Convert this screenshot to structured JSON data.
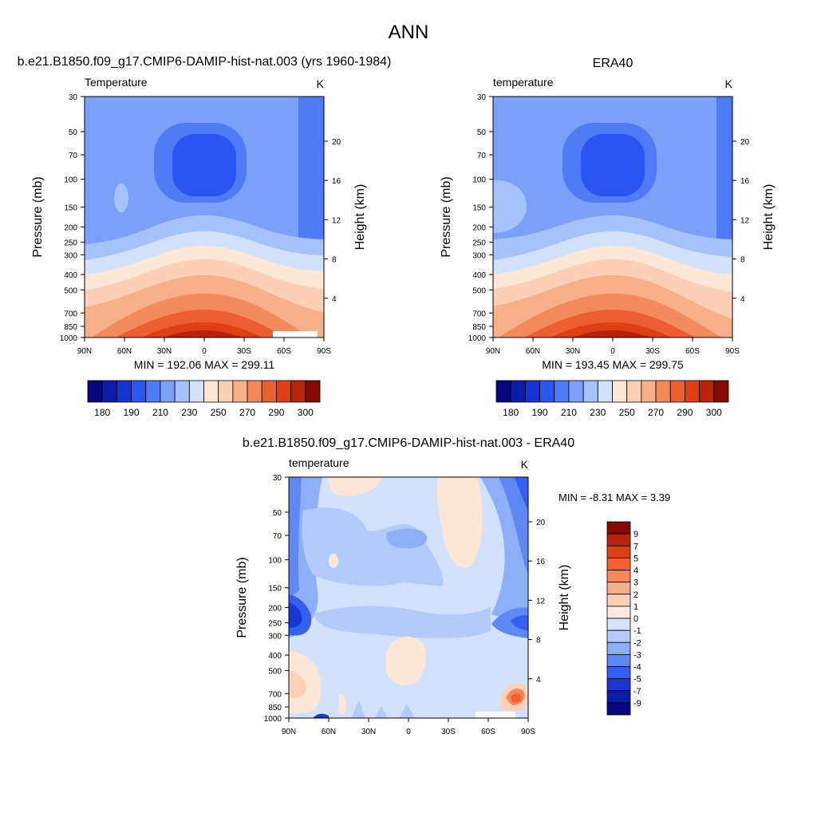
{
  "page": {
    "title": "ANN"
  },
  "chart_data": [
    {
      "type": "heatmap",
      "title": "b.e21.B1850.f09_g17.CMIP6-DAMIP-hist-nat.003 (yrs 1960-1984)",
      "subtitle": "Temperature",
      "units": "K",
      "xlabel": "",
      "ylabel": "Pressure (mb)",
      "ylabel_right": "Height (km)",
      "x_ticks": [
        "90N",
        "60N",
        "30N",
        "0",
        "30S",
        "60S",
        "90S"
      ],
      "y_ticks": [
        30,
        50,
        70,
        100,
        150,
        200,
        250,
        300,
        400,
        500,
        700,
        850,
        1000
      ],
      "y_right_ticks": [
        4,
        8,
        12,
        16,
        20
      ],
      "ylim": [
        1000,
        30
      ],
      "y_scale": "log",
      "stats": "MIN = 192.06  MAX = 299.11",
      "min": 192.06,
      "max": 299.11,
      "colorbar": {
        "orientation": "horizontal",
        "labels": [
          "180",
          "190",
          "210",
          "230",
          "250",
          "270",
          "290",
          "300"
        ],
        "colors": [
          "#060680",
          "#0a1ca8",
          "#1431d1",
          "#2a55f0",
          "#4f7cf5",
          "#7aa0f8",
          "#a6c2fa",
          "#d3e2fc",
          "#fde8d8",
          "#fbd0b6",
          "#f7b08a",
          "#f38a5c",
          "#ec5f32",
          "#de3f14",
          "#b82408",
          "#860a02"
        ]
      }
    },
    {
      "type": "heatmap",
      "title": "ERA40",
      "subtitle": "temperature",
      "units": "K",
      "xlabel": "",
      "ylabel": "Pressure (mb)",
      "ylabel_right": "Height (km)",
      "x_ticks": [
        "90N",
        "60N",
        "30N",
        "0",
        "30S",
        "60S",
        "90S"
      ],
      "y_ticks": [
        30,
        50,
        70,
        100,
        150,
        200,
        250,
        300,
        400,
        500,
        700,
        850,
        1000
      ],
      "y_right_ticks": [
        4,
        8,
        12,
        16,
        20
      ],
      "ylim": [
        1000,
        30
      ],
      "y_scale": "log",
      "stats": "MIN = 193.45  MAX = 299.75",
      "min": 193.45,
      "max": 299.75,
      "colorbar": {
        "orientation": "horizontal",
        "labels": [
          "180",
          "190",
          "210",
          "230",
          "250",
          "270",
          "290",
          "300"
        ],
        "colors": [
          "#060680",
          "#0a1ca8",
          "#1431d1",
          "#2a55f0",
          "#4f7cf5",
          "#7aa0f8",
          "#a6c2fa",
          "#d3e2fc",
          "#fde8d8",
          "#fbd0b6",
          "#f7b08a",
          "#f38a5c",
          "#ec5f32",
          "#de3f14",
          "#b82408",
          "#860a02"
        ]
      }
    },
    {
      "type": "heatmap",
      "title": "b.e21.B1850.f09_g17.CMIP6-DAMIP-hist-nat.003 - ERA40",
      "subtitle": "temperature",
      "units": "K",
      "xlabel": "",
      "ylabel": "Pressure (mb)",
      "ylabel_right": "Height (km)",
      "x_ticks": [
        "90N",
        "60N",
        "30N",
        "0",
        "30S",
        "60S",
        "90S"
      ],
      "y_ticks": [
        30,
        50,
        70,
        100,
        150,
        200,
        250,
        300,
        400,
        500,
        700,
        850,
        1000
      ],
      "y_right_ticks": [
        4,
        8,
        12,
        16,
        20
      ],
      "ylim": [
        1000,
        30
      ],
      "y_scale": "log",
      "stats": "MIN =  -8.31  MAX =   3.39",
      "min": -8.31,
      "max": 3.39,
      "colorbar": {
        "orientation": "vertical",
        "labels": [
          "9",
          "7",
          "5",
          "4",
          "3",
          "2",
          "1",
          "0",
          "-1",
          "-2",
          "-3",
          "-4",
          "-5",
          "-7",
          "-9"
        ],
        "colors": [
          "#860a02",
          "#b82408",
          "#de3f14",
          "#f3602e",
          "#f58758",
          "#f9ae88",
          "#fbd2b8",
          "#fdeade",
          "#d5e3fc",
          "#b2cbfa",
          "#8caff7",
          "#5f88f3",
          "#3560ef",
          "#1a38cf",
          "#0a1ca8",
          "#060680"
        ]
      }
    }
  ]
}
